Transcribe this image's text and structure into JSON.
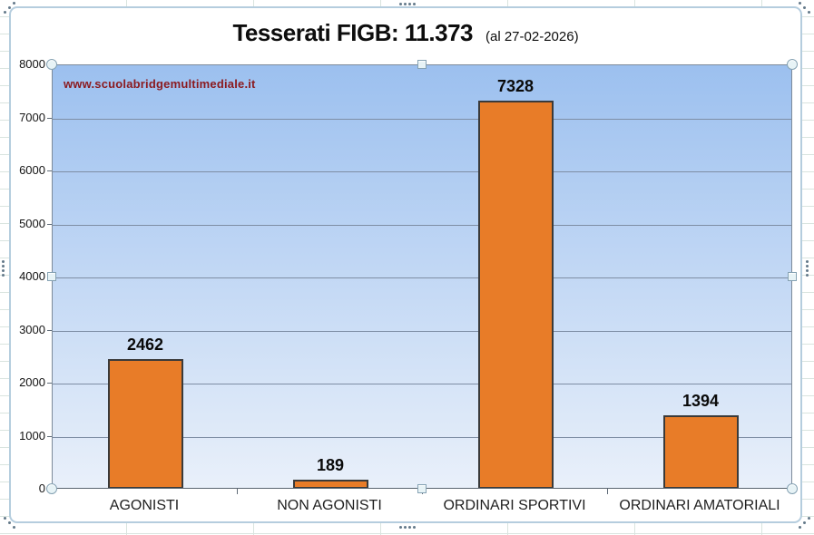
{
  "chart_header": {
    "title": "Tesserati FIGB: 11.373",
    "subtitle": "(al 27-02-2026)"
  },
  "watermark": {
    "text": "www.scuolabridgemultimediale.it",
    "color": "#8b1b20"
  },
  "chart_data": {
    "type": "bar",
    "title": "Tesserati FIGB: 11.373",
    "subtitle": "(al 27-02-2026)",
    "total_members": "11.373",
    "as_of_date": "27-02-2026",
    "categories": [
      "AGONISTI",
      "NON AGONISTI",
      "ORDINARI SPORTIVI",
      "ORDINARI AMATORIALI"
    ],
    "values": [
      2462,
      189,
      7328,
      1394
    ],
    "data_labels": [
      "2462",
      "189",
      "7328",
      "1394"
    ],
    "xlabel": "",
    "ylabel": "",
    "ylim": [
      0,
      8000
    ],
    "yticks": [
      0,
      1000,
      2000,
      3000,
      4000,
      5000,
      6000,
      7000,
      8000
    ],
    "grid": "horizontal",
    "legend": "none",
    "style": {
      "bar_fill": "#e87c28",
      "bar_border": "#3a3a3a",
      "plot_bg_top": "#9cc0ef",
      "plot_bg_bottom": "#e9f0fa",
      "gridline_color": "#7e8ea4"
    }
  }
}
